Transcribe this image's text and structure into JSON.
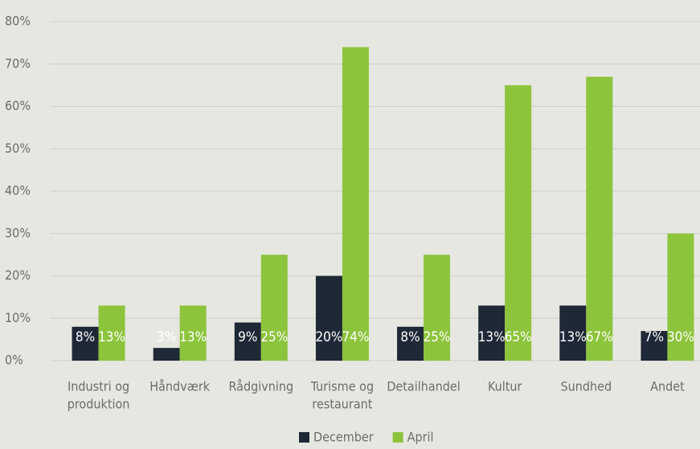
{
  "chart_data": {
    "type": "bar",
    "categories": [
      [
        "Industri og",
        "produktion"
      ],
      [
        "Håndværk"
      ],
      [
        "Rådgivning"
      ],
      [
        "Turisme og",
        "restaurant"
      ],
      [
        "Detailhandel"
      ],
      [
        "Kultur"
      ],
      [
        "Sundhed"
      ],
      [
        "Andet"
      ]
    ],
    "series": [
      {
        "name": "December",
        "color": "#1e2836",
        "values": [
          8,
          3,
          9,
          20,
          8,
          13,
          13,
          7
        ],
        "value_labels": [
          "8%",
          "3%",
          "9%",
          "20%",
          "8%",
          "13%",
          "13%",
          "7%"
        ]
      },
      {
        "name": "April",
        "color": "#8cc43c",
        "values": [
          13,
          13,
          25,
          74,
          25,
          65,
          67,
          30
        ],
        "value_labels": [
          "13%",
          "13%",
          "25%",
          "74%",
          "25%",
          "65%",
          "67%",
          "30%"
        ]
      }
    ],
    "ylim": [
      0,
      80
    ],
    "yticks": [
      {
        "value": 0,
        "label": "0%"
      },
      {
        "value": 10,
        "label": "10%"
      },
      {
        "value": 20,
        "label": "20%"
      },
      {
        "value": 30,
        "label": "30%"
      },
      {
        "value": 40,
        "label": "40%"
      },
      {
        "value": 50,
        "label": "50%"
      },
      {
        "value": 60,
        "label": "60%"
      },
      {
        "value": 70,
        "label": "70%"
      },
      {
        "value": 80,
        "label": "80%"
      }
    ],
    "grid": true,
    "legend": "bottom"
  }
}
